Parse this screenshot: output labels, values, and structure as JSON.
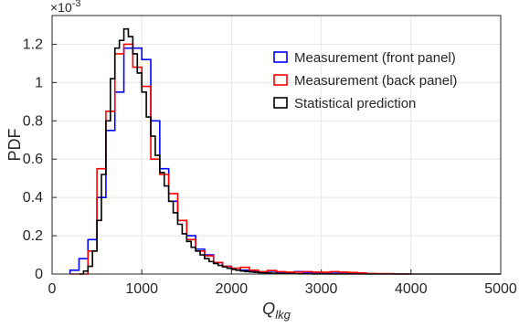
{
  "chart_data": {
    "type": "histogram",
    "xlabel_main": "Q",
    "xlabel_sub": "lkg",
    "ylabel": "PDF",
    "y_exponent_label": "×10",
    "y_exponent_power": "-3",
    "xlim": [
      0,
      5000
    ],
    "ylim": [
      0,
      0.00135
    ],
    "x_ticks": [
      0,
      1000,
      2000,
      3000,
      4000,
      5000
    ],
    "x_tick_labels": [
      "0",
      "1000",
      "2000",
      "3000",
      "4000",
      "5000"
    ],
    "y_ticks": [
      0,
      0.0002,
      0.0004,
      0.0006,
      0.0008,
      0.001,
      0.0012
    ],
    "y_tick_labels": [
      "0",
      "0.2",
      "0.4",
      "0.6",
      "0.8",
      "1",
      "1.2"
    ],
    "grid": true,
    "legend_position": "upper-right",
    "series": [
      {
        "name": "Measurement (front panel)",
        "color": "#0000ff",
        "bin_width": 100,
        "edges_start": 200,
        "values": [
          2e-05,
          8e-05,
          0.00018,
          0.0004,
          0.00075,
          0.00095,
          0.00118,
          0.00118,
          0.00112,
          0.0008,
          0.00055,
          0.00038,
          0.00028,
          0.0002,
          0.00013,
          0.0001,
          6e-05,
          4e-05,
          3e-05,
          2e-05,
          1.5e-05,
          1e-05,
          1.5e-05,
          1e-05,
          8e-06,
          1.2e-05,
          8e-06,
          6e-06,
          5e-06,
          4e-06,
          3e-06,
          2e-06,
          2e-06,
          1e-06,
          1e-06,
          1e-06,
          1e-06,
          1e-06
        ]
      },
      {
        "name": "Measurement (back panel)",
        "color": "#ff0000",
        "bin_width": 100,
        "edges_start": 200,
        "values": [
          0.0,
          0.0,
          0.00012,
          0.00055,
          0.00085,
          0.00115,
          0.0012,
          0.00108,
          0.00098,
          0.0006,
          0.00052,
          0.00042,
          0.00028,
          0.00018,
          0.00012,
          9.5e-05,
          6e-05,
          4e-05,
          3e-05,
          3.5e-05,
          2e-05,
          1.2e-05,
          1.8e-05,
          1.2e-05,
          1e-05,
          1e-05,
          1.2e-05,
          1e-05,
          9e-06,
          1.2e-05,
          1e-05,
          8e-06,
          6e-06,
          3e-06,
          2e-06,
          2e-06,
          1e-06,
          1e-06
        ]
      },
      {
        "name": "Statistical prediction",
        "color": "#000000",
        "bin_width": 50,
        "edges_start": 300,
        "values": [
          0.0,
          1.5e-05,
          4e-05,
          0.00012,
          0.00028,
          0.00052,
          0.0008,
          0.00102,
          0.00118,
          0.00122,
          0.00128,
          0.00124,
          0.00115,
          0.00105,
          0.00095,
          0.00082,
          0.00072,
          0.00062,
          0.00053,
          0.00046,
          0.00038,
          0.00032,
          0.00026,
          0.00021,
          0.00017,
          0.00014,
          0.00012,
          0.0001,
          8e-05,
          6.5e-05,
          5.5e-05,
          4.5e-05,
          3.7e-05,
          3e-05,
          2.4e-05,
          2e-05,
          1.6e-05,
          1.3e-05,
          1.1e-05,
          9e-06,
          7e-06,
          6e-06,
          5e-06,
          4e-06,
          3e-06,
          2.5e-06,
          2e-06,
          1.5e-06,
          1.2e-06,
          1e-06,
          8e-07,
          6e-07,
          5e-07,
          4e-07,
          3e-07,
          2e-07,
          2e-07,
          1e-07,
          1e-07,
          1e-07,
          1e-07,
          0.0,
          0.0,
          0.0,
          0.0,
          0.0,
          0.0,
          0.0,
          0.0,
          0.0,
          0.0,
          0.0,
          0.0,
          0.0,
          0.0,
          0.0,
          0.0,
          0.0,
          0.0,
          0.0,
          0.0,
          0.0,
          0.0,
          0.0,
          0.0,
          0.0,
          0.0,
          0.0,
          0.0,
          0.0,
          0.0,
          0.0,
          0.0,
          0.0
        ]
      }
    ]
  }
}
